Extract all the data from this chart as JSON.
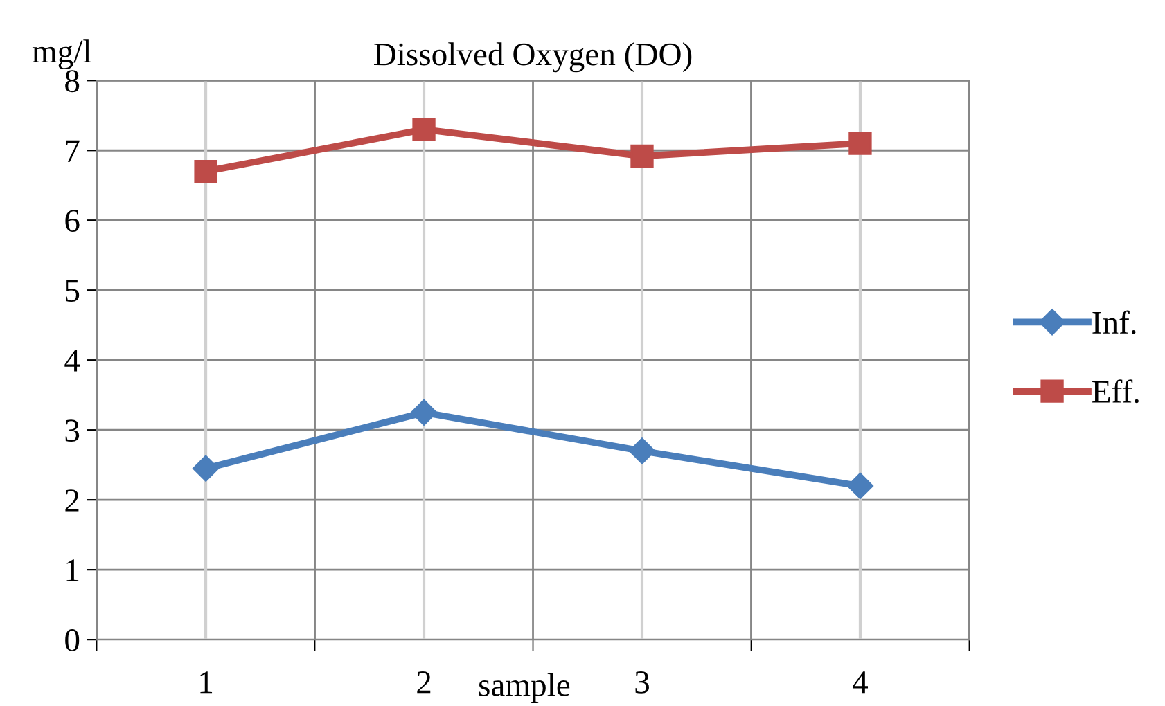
{
  "chart_data": {
    "type": "line",
    "title": "Dissolved Oxygen (DO)",
    "ylabel": "mg/l",
    "xlabel": "sample",
    "categories": [
      "1",
      "2",
      "3",
      "4"
    ],
    "series": [
      {
        "name": "Inf.",
        "color": "#4a7ebb",
        "marker": "diamond",
        "values": [
          2.45,
          3.25,
          2.7,
          2.2
        ]
      },
      {
        "name": "Eff.",
        "color": "#be4b48",
        "marker": "square",
        "values": [
          6.7,
          7.3,
          6.92,
          7.1
        ]
      }
    ],
    "ylim": [
      0,
      8
    ],
    "yticks": [
      0,
      1,
      2,
      3,
      4,
      5,
      6,
      7,
      8
    ],
    "grid": true,
    "legend": "right",
    "line_style": "solid"
  }
}
